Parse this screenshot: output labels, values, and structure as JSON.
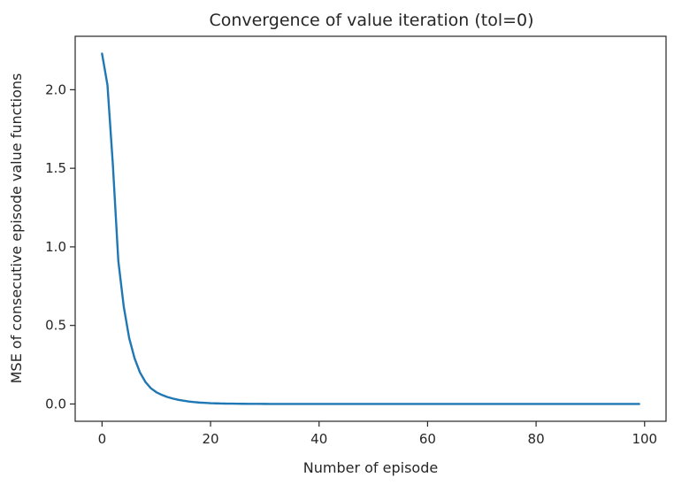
{
  "chart_data": {
    "type": "line",
    "title": "Convergence of value iteration (tol=0)",
    "xlabel": "Number of episode",
    "ylabel": "MSE of consecutive episode value functions",
    "xlim": [
      -4.95,
      103.95
    ],
    "ylim": [
      -0.11,
      2.34
    ],
    "xticks": [
      0,
      20,
      40,
      60,
      80,
      100
    ],
    "xtick_labels": [
      "0",
      "20",
      "40",
      "60",
      "80",
      "100"
    ],
    "yticks": [
      0.0,
      0.5,
      1.0,
      1.5,
      2.0
    ],
    "ytick_labels": [
      "0.0",
      "0.5",
      "1.0",
      "1.5",
      "2.0"
    ],
    "grid": false,
    "series": [
      {
        "color": "#1f77b4",
        "x_start": 0,
        "x_step": 1,
        "values": [
          2.23,
          2.03,
          1.52,
          0.91,
          0.62,
          0.42,
          0.29,
          0.2,
          0.14,
          0.1,
          0.075,
          0.058,
          0.045,
          0.035,
          0.027,
          0.021,
          0.016,
          0.012,
          0.009,
          0.007,
          0.005,
          0.004,
          0.003,
          0.0025,
          0.002,
          0.0015,
          0.0012,
          0.001,
          0.0008,
          0.0006,
          0.0005,
          0.0004,
          0.0003,
          0.00025,
          0.0002,
          0.00015,
          0.00012,
          0.0001,
          8e-05,
          6e-05,
          5e-05,
          4e-05,
          3e-05,
          2e-05,
          2e-05,
          1e-05,
          1e-05,
          1e-05,
          1e-05,
          1e-05,
          0.0,
          0.0,
          0.0,
          0.0,
          0.0,
          0.0,
          0.0,
          0.0,
          0.0,
          0.0,
          0.0,
          0.0,
          0.0,
          0.0,
          0.0,
          0.0,
          0.0,
          0.0,
          0.0,
          0.0,
          0.0,
          0.0,
          0.0,
          0.0,
          0.0,
          0.0,
          0.0,
          0.0,
          0.0,
          0.0,
          0.0,
          0.0,
          0.0,
          0.0,
          0.0,
          0.0,
          0.0,
          0.0,
          0.0,
          0.0,
          0.0,
          0.0,
          0.0,
          0.0,
          0.0,
          0.0,
          0.0,
          0.0,
          0.0,
          0.0
        ]
      }
    ]
  }
}
